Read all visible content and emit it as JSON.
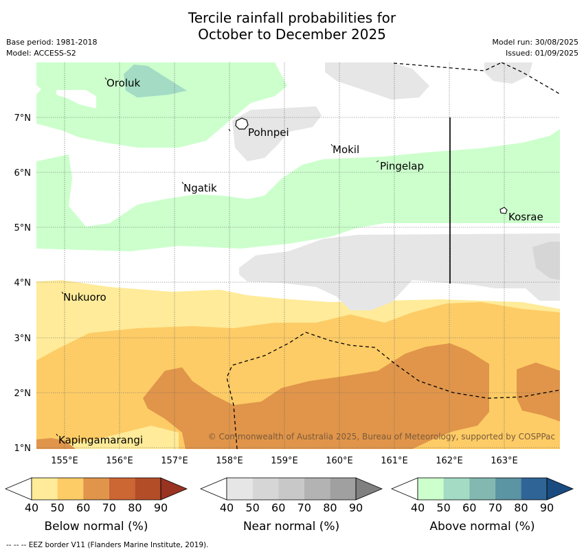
{
  "title_line1": "Tercile rainfall probabilities for",
  "title_line2": "October to December 2025",
  "base_period": "Base period: 1981-2018",
  "model": "Model: ACCESS-S2",
  "model_run": "Model run: 30/08/2025",
  "issued": "Issued: 01/09/2025",
  "copyright": "© Commonwealth of Australia 2025, Bureau of Meteorology, supported by COSPPac",
  "footer": "--  --  -- EEZ border V11 (Flanders Marine Institute, 2019).",
  "map": {
    "x_ticks": [
      "155°E",
      "156°E",
      "157°E",
      "158°E",
      "159°E",
      "160°E",
      "161°E",
      "162°E",
      "163°E"
    ],
    "y_ticks": [
      "1°N",
      "2°N",
      "3°N",
      "4°N",
      "5°N",
      "6°N",
      "7°N"
    ],
    "places": [
      "Oroluk",
      "Pohnpei",
      "Mokil",
      "Pingelap",
      "Ngatik",
      "Kosrae",
      "Nukuoro",
      "Kapingamarangi"
    ]
  },
  "legends": [
    {
      "name": "Below normal (%)",
      "ticks": [
        "40",
        "50",
        "60",
        "70",
        "80",
        "90"
      ],
      "colors": [
        "#ffffff",
        "#ffeb99",
        "#fdcc66",
        "#e0954a",
        "#cc6633",
        "#b34d28",
        "#993322"
      ]
    },
    {
      "name": "Near normal (%)",
      "ticks": [
        "40",
        "50",
        "60",
        "70",
        "80",
        "90"
      ],
      "colors": [
        "#ffffff",
        "#e6e6e6",
        "#d6d6d6",
        "#c8c8c8",
        "#b3b3b3",
        "#a0a0a0",
        "#808080"
      ]
    },
    {
      "name": "Above normal (%)",
      "ticks": [
        "40",
        "50",
        "60",
        "70",
        "80",
        "90"
      ],
      "colors": [
        "#ffffff",
        "#ccffcc",
        "#a3dbc4",
        "#82b8b0",
        "#5b94a3",
        "#2f6596",
        "#194b80"
      ]
    }
  ]
}
